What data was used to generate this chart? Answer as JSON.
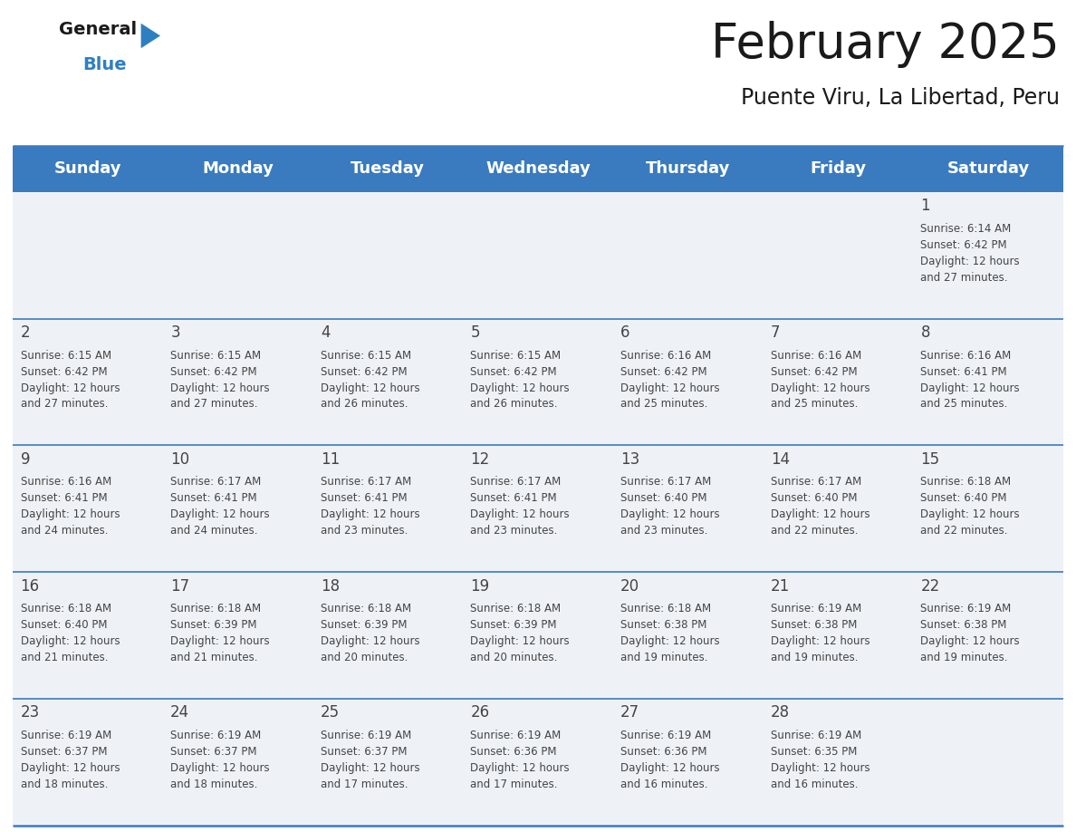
{
  "title": "February 2025",
  "subtitle": "Puente Viru, La Libertad, Peru",
  "days_of_week": [
    "Sunday",
    "Monday",
    "Tuesday",
    "Wednesday",
    "Thursday",
    "Friday",
    "Saturday"
  ],
  "header_bg": "#3a7bbf",
  "header_text": "#ffffff",
  "cell_bg": "#eef2f7",
  "line_color": "#3a7bbf",
  "text_color": "#444444",
  "calendar": [
    [
      null,
      null,
      null,
      null,
      null,
      null,
      {
        "day": 1,
        "sunrise": "6:14 AM",
        "sunset": "6:42 PM",
        "daylight_mins": "27 minutes."
      }
    ],
    [
      {
        "day": 2,
        "sunrise": "6:15 AM",
        "sunset": "6:42 PM",
        "daylight_mins": "27 minutes."
      },
      {
        "day": 3,
        "sunrise": "6:15 AM",
        "sunset": "6:42 PM",
        "daylight_mins": "27 minutes."
      },
      {
        "day": 4,
        "sunrise": "6:15 AM",
        "sunset": "6:42 PM",
        "daylight_mins": "26 minutes."
      },
      {
        "day": 5,
        "sunrise": "6:15 AM",
        "sunset": "6:42 PM",
        "daylight_mins": "26 minutes."
      },
      {
        "day": 6,
        "sunrise": "6:16 AM",
        "sunset": "6:42 PM",
        "daylight_mins": "25 minutes."
      },
      {
        "day": 7,
        "sunrise": "6:16 AM",
        "sunset": "6:42 PM",
        "daylight_mins": "25 minutes."
      },
      {
        "day": 8,
        "sunrise": "6:16 AM",
        "sunset": "6:41 PM",
        "daylight_mins": "25 minutes."
      }
    ],
    [
      {
        "day": 9,
        "sunrise": "6:16 AM",
        "sunset": "6:41 PM",
        "daylight_mins": "24 minutes."
      },
      {
        "day": 10,
        "sunrise": "6:17 AM",
        "sunset": "6:41 PM",
        "daylight_mins": "24 minutes."
      },
      {
        "day": 11,
        "sunrise": "6:17 AM",
        "sunset": "6:41 PM",
        "daylight_mins": "23 minutes."
      },
      {
        "day": 12,
        "sunrise": "6:17 AM",
        "sunset": "6:41 PM",
        "daylight_mins": "23 minutes."
      },
      {
        "day": 13,
        "sunrise": "6:17 AM",
        "sunset": "6:40 PM",
        "daylight_mins": "23 minutes."
      },
      {
        "day": 14,
        "sunrise": "6:17 AM",
        "sunset": "6:40 PM",
        "daylight_mins": "22 minutes."
      },
      {
        "day": 15,
        "sunrise": "6:18 AM",
        "sunset": "6:40 PM",
        "daylight_mins": "22 minutes."
      }
    ],
    [
      {
        "day": 16,
        "sunrise": "6:18 AM",
        "sunset": "6:40 PM",
        "daylight_mins": "21 minutes."
      },
      {
        "day": 17,
        "sunrise": "6:18 AM",
        "sunset": "6:39 PM",
        "daylight_mins": "21 minutes."
      },
      {
        "day": 18,
        "sunrise": "6:18 AM",
        "sunset": "6:39 PM",
        "daylight_mins": "20 minutes."
      },
      {
        "day": 19,
        "sunrise": "6:18 AM",
        "sunset": "6:39 PM",
        "daylight_mins": "20 minutes."
      },
      {
        "day": 20,
        "sunrise": "6:18 AM",
        "sunset": "6:38 PM",
        "daylight_mins": "19 minutes."
      },
      {
        "day": 21,
        "sunrise": "6:19 AM",
        "sunset": "6:38 PM",
        "daylight_mins": "19 minutes."
      },
      {
        "day": 22,
        "sunrise": "6:19 AM",
        "sunset": "6:38 PM",
        "daylight_mins": "19 minutes."
      }
    ],
    [
      {
        "day": 23,
        "sunrise": "6:19 AM",
        "sunset": "6:37 PM",
        "daylight_mins": "18 minutes."
      },
      {
        "day": 24,
        "sunrise": "6:19 AM",
        "sunset": "6:37 PM",
        "daylight_mins": "18 minutes."
      },
      {
        "day": 25,
        "sunrise": "6:19 AM",
        "sunset": "6:37 PM",
        "daylight_mins": "17 minutes."
      },
      {
        "day": 26,
        "sunrise": "6:19 AM",
        "sunset": "6:36 PM",
        "daylight_mins": "17 minutes."
      },
      {
        "day": 27,
        "sunrise": "6:19 AM",
        "sunset": "6:36 PM",
        "daylight_mins": "16 minutes."
      },
      {
        "day": 28,
        "sunrise": "6:19 AM",
        "sunset": "6:35 PM",
        "daylight_mins": "16 minutes."
      },
      null
    ]
  ],
  "logo_text_color": "#1a1a1a",
  "logo_blue_color": "#2e7fc1",
  "logo_triangle_color": "#2e7fc1",
  "title_fontsize": 38,
  "subtitle_fontsize": 17,
  "header_fontsize": 13,
  "day_number_fontsize": 12,
  "info_fontsize": 8.5
}
